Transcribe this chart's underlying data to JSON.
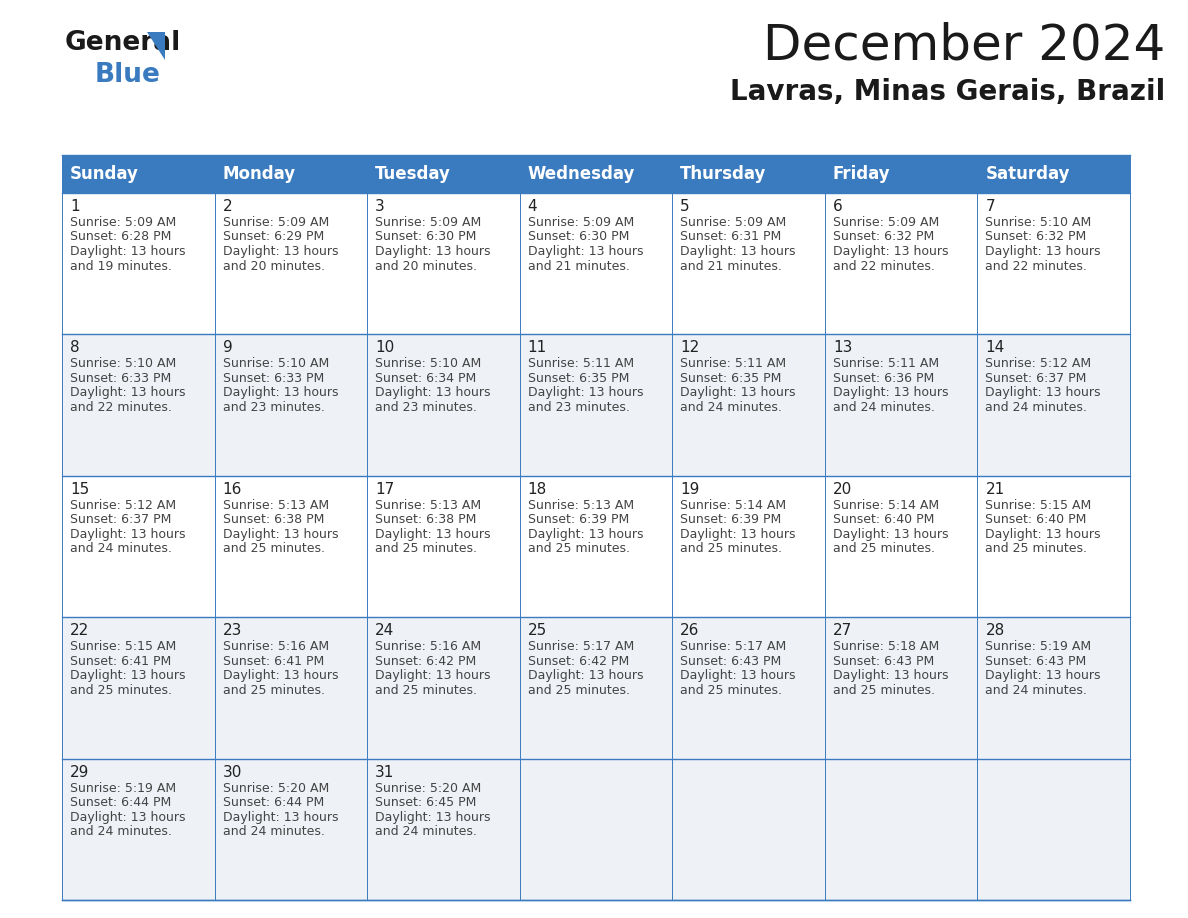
{
  "title": "December 2024",
  "subtitle": "Lavras, Minas Gerais, Brazil",
  "days_of_week": [
    "Sunday",
    "Monday",
    "Tuesday",
    "Wednesday",
    "Thursday",
    "Friday",
    "Saturday"
  ],
  "header_bg": "#3a7abf",
  "header_text": "#ffffff",
  "border_color": "#3a7abf",
  "text_color": "#444444",
  "day_num_color": "#222222",
  "row_bg": [
    "#ffffff",
    "#eef2f7",
    "#ffffff",
    "#eef2f7",
    "#eef2f7"
  ],
  "calendar": [
    [
      {
        "day": 1,
        "sunrise": "5:09 AM",
        "sunset": "6:28 PM",
        "daylight_line1": "Daylight: 13 hours",
        "daylight_line2": "and 19 minutes."
      },
      {
        "day": 2,
        "sunrise": "5:09 AM",
        "sunset": "6:29 PM",
        "daylight_line1": "Daylight: 13 hours",
        "daylight_line2": "and 20 minutes."
      },
      {
        "day": 3,
        "sunrise": "5:09 AM",
        "sunset": "6:30 PM",
        "daylight_line1": "Daylight: 13 hours",
        "daylight_line2": "and 20 minutes."
      },
      {
        "day": 4,
        "sunrise": "5:09 AM",
        "sunset": "6:30 PM",
        "daylight_line1": "Daylight: 13 hours",
        "daylight_line2": "and 21 minutes."
      },
      {
        "day": 5,
        "sunrise": "5:09 AM",
        "sunset": "6:31 PM",
        "daylight_line1": "Daylight: 13 hours",
        "daylight_line2": "and 21 minutes."
      },
      {
        "day": 6,
        "sunrise": "5:09 AM",
        "sunset": "6:32 PM",
        "daylight_line1": "Daylight: 13 hours",
        "daylight_line2": "and 22 minutes."
      },
      {
        "day": 7,
        "sunrise": "5:10 AM",
        "sunset": "6:32 PM",
        "daylight_line1": "Daylight: 13 hours",
        "daylight_line2": "and 22 minutes."
      }
    ],
    [
      {
        "day": 8,
        "sunrise": "5:10 AM",
        "sunset": "6:33 PM",
        "daylight_line1": "Daylight: 13 hours",
        "daylight_line2": "and 22 minutes."
      },
      {
        "day": 9,
        "sunrise": "5:10 AM",
        "sunset": "6:33 PM",
        "daylight_line1": "Daylight: 13 hours",
        "daylight_line2": "and 23 minutes."
      },
      {
        "day": 10,
        "sunrise": "5:10 AM",
        "sunset": "6:34 PM",
        "daylight_line1": "Daylight: 13 hours",
        "daylight_line2": "and 23 minutes."
      },
      {
        "day": 11,
        "sunrise": "5:11 AM",
        "sunset": "6:35 PM",
        "daylight_line1": "Daylight: 13 hours",
        "daylight_line2": "and 23 minutes."
      },
      {
        "day": 12,
        "sunrise": "5:11 AM",
        "sunset": "6:35 PM",
        "daylight_line1": "Daylight: 13 hours",
        "daylight_line2": "and 24 minutes."
      },
      {
        "day": 13,
        "sunrise": "5:11 AM",
        "sunset": "6:36 PM",
        "daylight_line1": "Daylight: 13 hours",
        "daylight_line2": "and 24 minutes."
      },
      {
        "day": 14,
        "sunrise": "5:12 AM",
        "sunset": "6:37 PM",
        "daylight_line1": "Daylight: 13 hours",
        "daylight_line2": "and 24 minutes."
      }
    ],
    [
      {
        "day": 15,
        "sunrise": "5:12 AM",
        "sunset": "6:37 PM",
        "daylight_line1": "Daylight: 13 hours",
        "daylight_line2": "and 24 minutes."
      },
      {
        "day": 16,
        "sunrise": "5:13 AM",
        "sunset": "6:38 PM",
        "daylight_line1": "Daylight: 13 hours",
        "daylight_line2": "and 25 minutes."
      },
      {
        "day": 17,
        "sunrise": "5:13 AM",
        "sunset": "6:38 PM",
        "daylight_line1": "Daylight: 13 hours",
        "daylight_line2": "and 25 minutes."
      },
      {
        "day": 18,
        "sunrise": "5:13 AM",
        "sunset": "6:39 PM",
        "daylight_line1": "Daylight: 13 hours",
        "daylight_line2": "and 25 minutes."
      },
      {
        "day": 19,
        "sunrise": "5:14 AM",
        "sunset": "6:39 PM",
        "daylight_line1": "Daylight: 13 hours",
        "daylight_line2": "and 25 minutes."
      },
      {
        "day": 20,
        "sunrise": "5:14 AM",
        "sunset": "6:40 PM",
        "daylight_line1": "Daylight: 13 hours",
        "daylight_line2": "and 25 minutes."
      },
      {
        "day": 21,
        "sunrise": "5:15 AM",
        "sunset": "6:40 PM",
        "daylight_line1": "Daylight: 13 hours",
        "daylight_line2": "and 25 minutes."
      }
    ],
    [
      {
        "day": 22,
        "sunrise": "5:15 AM",
        "sunset": "6:41 PM",
        "daylight_line1": "Daylight: 13 hours",
        "daylight_line2": "and 25 minutes."
      },
      {
        "day": 23,
        "sunrise": "5:16 AM",
        "sunset": "6:41 PM",
        "daylight_line1": "Daylight: 13 hours",
        "daylight_line2": "and 25 minutes."
      },
      {
        "day": 24,
        "sunrise": "5:16 AM",
        "sunset": "6:42 PM",
        "daylight_line1": "Daylight: 13 hours",
        "daylight_line2": "and 25 minutes."
      },
      {
        "day": 25,
        "sunrise": "5:17 AM",
        "sunset": "6:42 PM",
        "daylight_line1": "Daylight: 13 hours",
        "daylight_line2": "and 25 minutes."
      },
      {
        "day": 26,
        "sunrise": "5:17 AM",
        "sunset": "6:43 PM",
        "daylight_line1": "Daylight: 13 hours",
        "daylight_line2": "and 25 minutes."
      },
      {
        "day": 27,
        "sunrise": "5:18 AM",
        "sunset": "6:43 PM",
        "daylight_line1": "Daylight: 13 hours",
        "daylight_line2": "and 25 minutes."
      },
      {
        "day": 28,
        "sunrise": "5:19 AM",
        "sunset": "6:43 PM",
        "daylight_line1": "Daylight: 13 hours",
        "daylight_line2": "and 24 minutes."
      }
    ],
    [
      {
        "day": 29,
        "sunrise": "5:19 AM",
        "sunset": "6:44 PM",
        "daylight_line1": "Daylight: 13 hours",
        "daylight_line2": "and 24 minutes."
      },
      {
        "day": 30,
        "sunrise": "5:20 AM",
        "sunset": "6:44 PM",
        "daylight_line1": "Daylight: 13 hours",
        "daylight_line2": "and 24 minutes."
      },
      {
        "day": 31,
        "sunrise": "5:20 AM",
        "sunset": "6:45 PM",
        "daylight_line1": "Daylight: 13 hours",
        "daylight_line2": "and 24 minutes."
      },
      null,
      null,
      null,
      null
    ]
  ],
  "title_fontsize": 36,
  "subtitle_fontsize": 20,
  "header_fontsize": 12,
  "day_num_fontsize": 11,
  "cell_fontsize": 9
}
